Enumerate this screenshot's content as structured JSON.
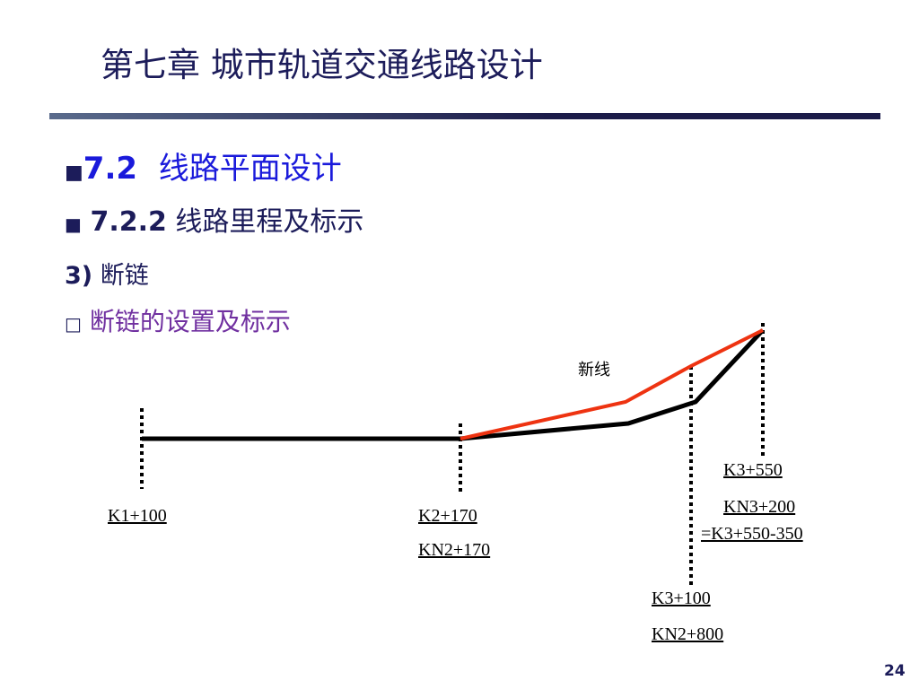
{
  "header": {
    "title": "第七章 城市轨道交通线路设计"
  },
  "section": {
    "number": "7.2",
    "title": "线路平面设计"
  },
  "subsection": {
    "number": "7.2.2",
    "title": "线路里程及标示"
  },
  "item": {
    "number": "3)",
    "title": "断链"
  },
  "bullet": {
    "text": "断链的设置及标示"
  },
  "diagram": {
    "new_line_label": "新线",
    "labels": [
      "K1+100",
      "K2+170",
      "KN2+170",
      "K3+550",
      "KN3+200",
      "=K3+550-350",
      "K3+100",
      "KN2+800"
    ]
  },
  "footer": {
    "page": "24"
  }
}
